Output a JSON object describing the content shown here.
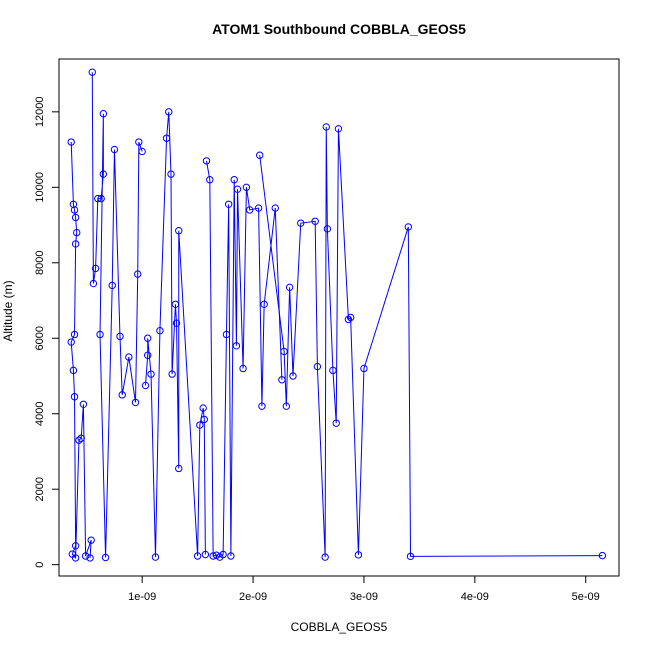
{
  "chart_data": {
    "type": "line",
    "title": "ATOM1 Southbound COBBLA_GEOS5",
    "xlabel": "COBBLA_GEOS5",
    "ylabel": "Altitude (m)",
    "xlim": [
      2.5e-10,
      5.3e-09
    ],
    "ylim": [
      -300,
      13400
    ],
    "x_ticks": [
      1e-09,
      2e-09,
      3e-09,
      4e-09,
      5e-09
    ],
    "x_tick_labels": [
      "1e-09",
      "2e-09",
      "3e-09",
      "4e-09",
      "5e-09"
    ],
    "y_ticks": [
      0,
      2000,
      4000,
      6000,
      8000,
      10000,
      12000
    ],
    "y_tick_labels": [
      "0",
      "2000",
      "4000",
      "6000",
      "8000",
      "10000",
      "12000"
    ],
    "grid": false,
    "series_color": "#0000ff",
    "marker": "open-circle",
    "series": [
      {
        "points": [
          [
            3.6e-10,
            11200
          ],
          [
            3.8e-10,
            9550
          ],
          [
            3.9e-10,
            9400
          ],
          [
            4e-10,
            9200
          ],
          [
            4.1e-10,
            8800
          ],
          [
            4e-10,
            8500
          ],
          [
            3.9e-10,
            6100
          ],
          [
            3.6e-10,
            5900
          ],
          [
            3.8e-10,
            5150
          ],
          [
            3.9e-10,
            4450
          ],
          [
            4e-10,
            500
          ],
          [
            3.7e-10,
            280
          ],
          [
            4e-10,
            180
          ],
          [
            4.3e-10,
            3300
          ],
          [
            4.5e-10,
            3350
          ],
          [
            4.7e-10,
            4250
          ],
          [
            4.9e-10,
            230
          ],
          [
            5.4e-10,
            650
          ],
          [
            5.3e-10,
            180
          ]
        ]
      },
      {
        "points": [
          [
            5.5e-10,
            13050
          ],
          [
            5.6e-10,
            7450
          ],
          [
            5.8e-10,
            7850
          ],
          [
            6e-10,
            9700
          ],
          [
            6.3e-10,
            9700
          ],
          [
            6.5e-10,
            10350
          ],
          [
            6.5e-10,
            11950
          ],
          [
            6.2e-10,
            6100
          ],
          [
            6.7e-10,
            190
          ],
          [
            7.3e-10,
            7400
          ],
          [
            7.5e-10,
            11000
          ],
          [
            8e-10,
            6050
          ],
          [
            8.2e-10,
            4500
          ],
          [
            8.8e-10,
            5500
          ],
          [
            9.4e-10,
            4300
          ],
          [
            9.6e-10,
            7700
          ],
          [
            9.7e-10,
            11200
          ],
          [
            1e-09,
            10950
          ]
        ]
      },
      {
        "points": [
          [
            1.03e-09,
            4750
          ],
          [
            1.05e-09,
            5550
          ],
          [
            1.05e-09,
            6000
          ],
          [
            1.08e-09,
            5050
          ],
          [
            1.12e-09,
            200
          ],
          [
            1.16e-09,
            6200
          ],
          [
            1.22e-09,
            11300
          ],
          [
            1.24e-09,
            12000
          ],
          [
            1.26e-09,
            10350
          ],
          [
            1.27e-09,
            5050
          ],
          [
            1.3e-09,
            6900
          ],
          [
            1.31e-09,
            6400
          ],
          [
            1.33e-09,
            2550
          ],
          [
            1.33e-09,
            8850
          ],
          [
            1.5e-09,
            230
          ],
          [
            1.52e-09,
            3700
          ],
          [
            1.55e-09,
            4150
          ],
          [
            1.56e-09,
            3850
          ],
          [
            1.57e-09,
            270
          ]
        ]
      },
      {
        "points": [
          [
            1.58e-09,
            10700
          ],
          [
            1.61e-09,
            10200
          ],
          [
            1.64e-09,
            230
          ],
          [
            1.67e-09,
            250
          ],
          [
            1.7e-09,
            200
          ],
          [
            1.73e-09,
            270
          ],
          [
            1.76e-09,
            6100
          ],
          [
            1.78e-09,
            9550
          ],
          [
            1.8e-09,
            230
          ],
          [
            1.83e-09,
            10200
          ],
          [
            1.85e-09,
            5800
          ],
          [
            1.86e-09,
            9950
          ],
          [
            1.91e-09,
            5200
          ],
          [
            1.94e-09,
            10000
          ],
          [
            1.97e-09,
            9400
          ],
          [
            2.05e-09,
            9450
          ],
          [
            2.08e-09,
            4200
          ],
          [
            2.1e-09,
            6900
          ],
          [
            2.2e-09,
            9450
          ],
          [
            2.26e-09,
            4900
          ]
        ]
      },
      {
        "points": [
          [
            2.06e-09,
            10850
          ],
          [
            2.28e-09,
            5650
          ],
          [
            2.3e-09,
            4200
          ],
          [
            2.33e-09,
            7350
          ],
          [
            2.36e-09,
            5000
          ],
          [
            2.43e-09,
            9050
          ],
          [
            2.56e-09,
            9100
          ],
          [
            2.58e-09,
            5250
          ],
          [
            2.65e-09,
            200
          ],
          [
            2.66e-09,
            11600
          ],
          [
            2.67e-09,
            8900
          ],
          [
            2.72e-09,
            5150
          ],
          [
            2.75e-09,
            3750
          ],
          [
            2.77e-09,
            11550
          ],
          [
            2.86e-09,
            6500
          ],
          [
            2.88e-09,
            6550
          ],
          [
            2.95e-09,
            260
          ],
          [
            3e-09,
            5200
          ],
          [
            3.4e-09,
            8950
          ],
          [
            3.42e-09,
            220
          ],
          [
            5.15e-09,
            240
          ]
        ]
      }
    ]
  }
}
